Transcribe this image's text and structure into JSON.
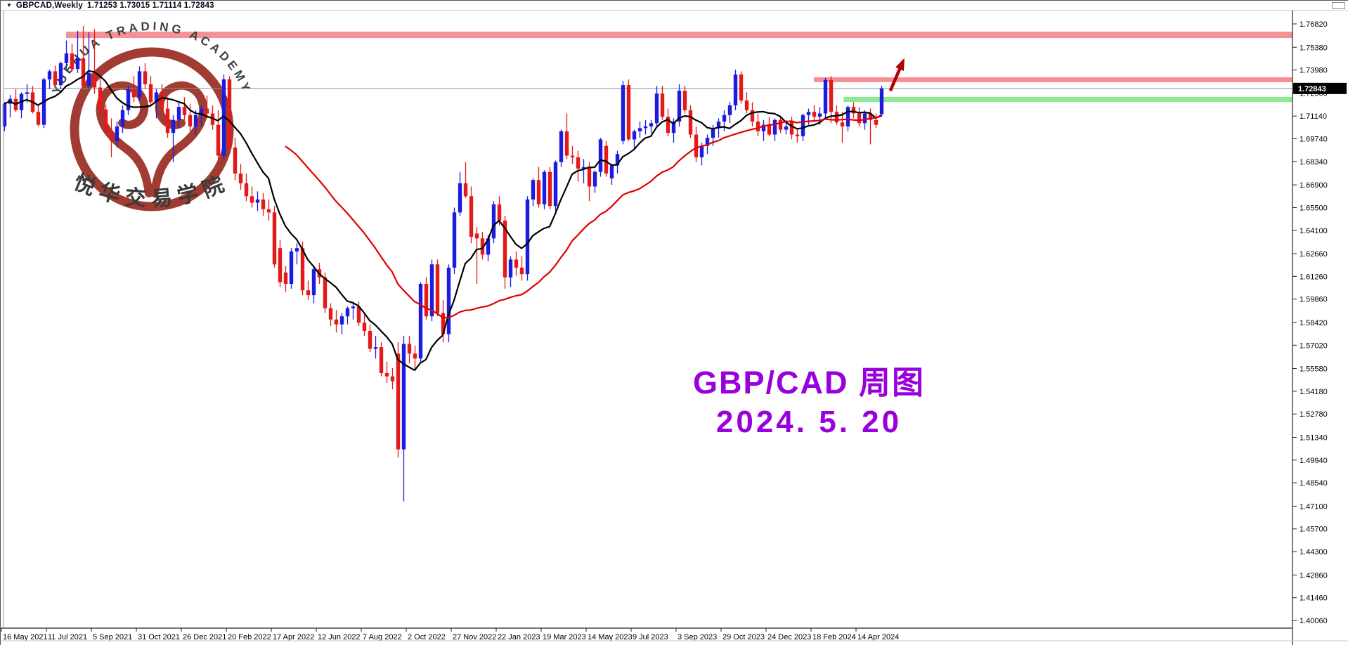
{
  "window": {
    "dropdown_icon": "▼",
    "symbol_title": "GBPCAD,Weekly",
    "title_ohlc": "1.71253 1.73015 1.71114 1.72843"
  },
  "watermark": {
    "arc_text": "YUEHUA TRADING ACADEMY",
    "cn_text": "悦华交易学院",
    "ring_color": "#A03C32",
    "text_color": "#3F3F3F"
  },
  "annotation": {
    "line1": "GBP/CAD 周图",
    "line2": "2024. 5. 20",
    "color": "#9900DD"
  },
  "price_label": {
    "value": "1.72843"
  },
  "chart_data": {
    "type": "candlestick",
    "symbol": "GBPCAD",
    "timeframe": "Weekly",
    "title": "GBPCAD,Weekly",
    "current_bar": {
      "open": 1.71253,
      "high": 1.73015,
      "low": 1.71114,
      "close": 1.72843
    },
    "ylim": [
      1.39,
      1.775
    ],
    "grid": false,
    "up_color": "#1C1CE0",
    "down_color": "#E41A1A",
    "current_line_color": "#8593A2",
    "y_ticks": [
      "1.76820",
      "1.75380",
      "1.73980",
      "1.72560",
      "1.71140",
      "1.69740",
      "1.68340",
      "1.66900",
      "1.65500",
      "1.64100",
      "1.62660",
      "1.61260",
      "1.59860",
      "1.58420",
      "1.57020",
      "1.55580",
      "1.54180",
      "1.52780",
      "1.51340",
      "1.49940",
      "1.48540",
      "1.47100",
      "1.45700",
      "1.44300",
      "1.42860",
      "1.41460",
      "1.40060"
    ],
    "x_tick_labels": [
      "16 May 2021",
      "11 Jul 2021",
      "5 Sep 2021",
      "31 Oct 2021",
      "26 Dec 2021",
      "20 Feb 2022",
      "17 Apr 2022",
      "12 Jun 2022",
      "7 Aug 2022",
      "2 Oct 2022",
      "27 Nov 2022",
      "22 Jan 2023",
      "19 Mar 2023",
      "14 May 2023",
      "9 Jul 2023",
      "3 Sep 2023",
      "29 Oct 2023",
      "24 Dec 2023",
      "18 Feb 2024",
      "14 Apr 2024"
    ],
    "bands": [
      {
        "name": "resistance-zone-upper",
        "color": "#F59095",
        "price_from": 1.7595,
        "price_to": 1.7634,
        "start_index": 11
      },
      {
        "name": "resistance-zone-lower",
        "color": "#F59095",
        "price_from": 1.7323,
        "price_to": 1.7353,
        "start_index": 144
      },
      {
        "name": "support-zone",
        "color": "#8FE895",
        "price_from": 1.7201,
        "price_to": 1.7232,
        "start_index": 149.3
      }
    ],
    "ma_fast": {
      "period": 9,
      "color": "#000000",
      "width": 2.2
    },
    "ma_slow": {
      "period": 31,
      "color": "#E00000",
      "width": 2.2,
      "start_index": 50
    },
    "arrow": {
      "color": "#B00000",
      "tail_index": 157.6,
      "tail_price": 1.727,
      "tip_index": 159.9,
      "tip_price": 1.7455
    },
    "candles": [
      [
        1.705,
        1.72,
        1.702,
        1.719
      ],
      [
        1.719,
        1.7245,
        1.7105,
        1.722
      ],
      [
        1.722,
        1.728,
        1.714,
        1.715
      ],
      [
        1.715,
        1.726,
        1.71,
        1.725
      ],
      [
        1.725,
        1.731,
        1.7195,
        1.726
      ],
      [
        1.726,
        1.73,
        1.713,
        1.714
      ],
      [
        1.714,
        1.7185,
        1.705,
        1.706
      ],
      [
        1.706,
        1.735,
        1.704,
        1.734
      ],
      [
        1.734,
        1.74,
        1.728,
        1.739
      ],
      [
        1.739,
        1.7425,
        1.7295,
        1.7305
      ],
      [
        1.7305,
        1.745,
        1.728,
        1.744
      ],
      [
        1.744,
        1.758,
        1.74,
        1.75
      ],
      [
        1.75,
        1.756,
        1.739,
        1.7405
      ],
      [
        1.7405,
        1.764,
        1.738,
        1.747
      ],
      [
        1.747,
        1.767,
        1.729,
        1.73
      ],
      [
        1.73,
        1.763,
        1.728,
        1.738
      ],
      [
        1.738,
        1.765,
        1.725,
        1.729
      ],
      [
        1.729,
        1.735,
        1.713,
        1.7155
      ],
      [
        1.7155,
        1.7185,
        1.7,
        1.702
      ],
      [
        1.702,
        1.71,
        1.686,
        1.696
      ],
      [
        1.696,
        1.708,
        1.692,
        1.705
      ],
      [
        1.705,
        1.718,
        1.701,
        1.715
      ],
      [
        1.715,
        1.73,
        1.712,
        1.728
      ],
      [
        1.728,
        1.736,
        1.72,
        1.723
      ],
      [
        1.723,
        1.742,
        1.721,
        1.739
      ],
      [
        1.739,
        1.744,
        1.728,
        1.731
      ],
      [
        1.731,
        1.736,
        1.718,
        1.72
      ],
      [
        1.72,
        1.728,
        1.71,
        1.726
      ],
      [
        1.726,
        1.731,
        1.714,
        1.716
      ],
      [
        1.716,
        1.723,
        1.698,
        1.701
      ],
      [
        1.701,
        1.712,
        1.683,
        1.709
      ],
      [
        1.709,
        1.72,
        1.704,
        1.717
      ],
      [
        1.717,
        1.723,
        1.709,
        1.712
      ],
      [
        1.712,
        1.719,
        1.702,
        1.705
      ],
      [
        1.705,
        1.715,
        1.7,
        1.712
      ],
      [
        1.712,
        1.718,
        1.705,
        1.716
      ],
      [
        1.716,
        1.724,
        1.71,
        1.713
      ],
      [
        1.713,
        1.718,
        1.703,
        1.706
      ],
      [
        1.706,
        1.715,
        1.683,
        1.687
      ],
      [
        1.687,
        1.737,
        1.685,
        1.734
      ],
      [
        1.734,
        1.736,
        1.689,
        1.692
      ],
      [
        1.692,
        1.698,
        1.672,
        1.676
      ],
      [
        1.676,
        1.682,
        1.666,
        1.67
      ],
      [
        1.67,
        1.676,
        1.659,
        1.662
      ],
      [
        1.662,
        1.668,
        1.655,
        1.658
      ],
      [
        1.658,
        1.665,
        1.653,
        1.66
      ],
      [
        1.66,
        1.664,
        1.65,
        1.654
      ],
      [
        1.654,
        1.66,
        1.647,
        1.652
      ],
      [
        1.652,
        1.656,
        1.618,
        1.62
      ],
      [
        1.63,
        1.635,
        1.606,
        1.609
      ],
      [
        1.615,
        1.619,
        1.603,
        1.608
      ],
      [
        1.608,
        1.63,
        1.605,
        1.628
      ],
      [
        1.628,
        1.633,
        1.62,
        1.63
      ],
      [
        1.63,
        1.634,
        1.601,
        1.604
      ],
      [
        1.604,
        1.61,
        1.598,
        1.601
      ],
      [
        1.601,
        1.619,
        1.596,
        1.617
      ],
      [
        1.617,
        1.621,
        1.608,
        1.612
      ],
      [
        1.612,
        1.615,
        1.59,
        1.593
      ],
      [
        1.593,
        1.596,
        1.582,
        1.586
      ],
      [
        1.586,
        1.592,
        1.578,
        1.583
      ],
      [
        1.583,
        1.59,
        1.577,
        1.588
      ],
      [
        1.588,
        1.594,
        1.583,
        1.593
      ],
      [
        1.593,
        1.597,
        1.586,
        1.594
      ],
      [
        1.594,
        1.597,
        1.582,
        1.584
      ],
      [
        1.584,
        1.589,
        1.576,
        1.579
      ],
      [
        1.579,
        1.583,
        1.566,
        1.568
      ],
      [
        1.568,
        1.576,
        1.562,
        1.569
      ],
      [
        1.569,
        1.572,
        1.551,
        1.553
      ],
      [
        1.553,
        1.56,
        1.547,
        1.551
      ],
      [
        1.551,
        1.556,
        1.543,
        1.548
      ],
      [
        1.565,
        1.572,
        1.501,
        1.506
      ],
      [
        1.506,
        1.576,
        1.474,
        1.571
      ],
      [
        1.571,
        1.576,
        1.559,
        1.565
      ],
      [
        1.565,
        1.57,
        1.555,
        1.562
      ],
      [
        1.562,
        1.609,
        1.56,
        1.608
      ],
      [
        1.608,
        1.612,
        1.586,
        1.588
      ],
      [
        1.588,
        1.623,
        1.585,
        1.62
      ],
      [
        1.62,
        1.623,
        1.588,
        1.59
      ],
      [
        1.59,
        1.598,
        1.572,
        1.577
      ],
      [
        1.577,
        1.62,
        1.572,
        1.618
      ],
      [
        1.618,
        1.655,
        1.614,
        1.652
      ],
      [
        1.652,
        1.677,
        1.65,
        1.67
      ],
      [
        1.67,
        1.683,
        1.661,
        1.662
      ],
      [
        1.662,
        1.668,
        1.633,
        1.637
      ],
      [
        1.639,
        1.643,
        1.608,
        1.636
      ],
      [
        1.636,
        1.64,
        1.623,
        1.626
      ],
      [
        1.626,
        1.638,
        1.622,
        1.636
      ],
      [
        1.636,
        1.659,
        1.633,
        1.657
      ],
      [
        1.657,
        1.662,
        1.644,
        1.647
      ],
      [
        1.647,
        1.65,
        1.605,
        1.612
      ],
      [
        1.612,
        1.625,
        1.606,
        1.623
      ],
      [
        1.623,
        1.628,
        1.613,
        1.618
      ],
      [
        1.618,
        1.625,
        1.61,
        1.614
      ],
      [
        1.614,
        1.662,
        1.61,
        1.66
      ],
      [
        1.66,
        1.673,
        1.656,
        1.672
      ],
      [
        1.672,
        1.68,
        1.655,
        1.657
      ],
      [
        1.657,
        1.678,
        1.654,
        1.677
      ],
      [
        1.677,
        1.68,
        1.654,
        1.656
      ],
      [
        1.656,
        1.684,
        1.653,
        1.683
      ],
      [
        1.683,
        1.703,
        1.68,
        1.702
      ],
      [
        1.702,
        1.713,
        1.685,
        1.687
      ],
      [
        1.687,
        1.693,
        1.682,
        1.686
      ],
      [
        1.686,
        1.69,
        1.671,
        1.679
      ],
      [
        1.679,
        1.685,
        1.67,
        1.68
      ],
      [
        1.68,
        1.683,
        1.659,
        1.668
      ],
      [
        1.668,
        1.678,
        1.664,
        1.677
      ],
      [
        1.677,
        1.698,
        1.674,
        1.697
      ],
      [
        1.693,
        1.696,
        1.674,
        1.676
      ],
      [
        1.673,
        1.682,
        1.669,
        1.681
      ],
      [
        1.681,
        1.69,
        1.676,
        1.688
      ],
      [
        1.696,
        1.733,
        1.694,
        1.7305
      ],
      [
        1.7305,
        1.734,
        1.696,
        1.697
      ],
      [
        1.697,
        1.703,
        1.691,
        1.702
      ],
      [
        1.702,
        1.708,
        1.698,
        1.704
      ],
      [
        1.704,
        1.709,
        1.7,
        1.705
      ],
      [
        1.705,
        1.709,
        1.701,
        1.707
      ],
      [
        1.707,
        1.73,
        1.705,
        1.7253
      ],
      [
        1.7253,
        1.73,
        1.709,
        1.711
      ],
      [
        1.711,
        1.716,
        1.699,
        1.701
      ],
      [
        1.701,
        1.71,
        1.695,
        1.708
      ],
      [
        1.708,
        1.731,
        1.705,
        1.727
      ],
      [
        1.727,
        1.73,
        1.713,
        1.715
      ],
      [
        1.715,
        1.718,
        1.698,
        1.7
      ],
      [
        1.7,
        1.705,
        1.683,
        1.686
      ],
      [
        1.686,
        1.695,
        1.681,
        1.693
      ],
      [
        1.693,
        1.7,
        1.688,
        1.698
      ],
      [
        1.698,
        1.706,
        1.693,
        1.704
      ],
      [
        1.704,
        1.71,
        1.698,
        1.708
      ],
      [
        1.708,
        1.715,
        1.702,
        1.712
      ],
      [
        1.712,
        1.72,
        1.707,
        1.718
      ],
      [
        1.718,
        1.74,
        1.715,
        1.737
      ],
      [
        1.737,
        1.739,
        1.719,
        1.721
      ],
      [
        1.721,
        1.726,
        1.713,
        1.715
      ],
      [
        1.715,
        1.72,
        1.705,
        1.708
      ],
      [
        1.708,
        1.713,
        1.699,
        1.702
      ],
      [
        1.702,
        1.709,
        1.696,
        1.706
      ],
      [
        1.706,
        1.711,
        1.699,
        1.7
      ],
      [
        1.7,
        1.71,
        1.696,
        1.709
      ],
      [
        1.709,
        1.711,
        1.701,
        1.703
      ],
      [
        1.703,
        1.709,
        1.7,
        1.705
      ],
      [
        1.708,
        1.711,
        1.697,
        1.7
      ],
      [
        1.7,
        1.704,
        1.695,
        1.699
      ],
      [
        1.699,
        1.713,
        1.696,
        1.712
      ],
      [
        1.712,
        1.716,
        1.706,
        1.714
      ],
      [
        1.714,
        1.718,
        1.708,
        1.711
      ],
      [
        1.711,
        1.717,
        1.706,
        1.713
      ],
      [
        1.713,
        1.735,
        1.71,
        1.7336
      ],
      [
        1.7336,
        1.736,
        1.707,
        1.714
      ],
      [
        1.714,
        1.718,
        1.706,
        1.7075
      ],
      [
        1.7075,
        1.714,
        1.695,
        1.705
      ],
      [
        1.705,
        1.718,
        1.702,
        1.717
      ],
      [
        1.717,
        1.72,
        1.71,
        1.713
      ],
      [
        1.713,
        1.717,
        1.705,
        1.707
      ],
      [
        1.707,
        1.715,
        1.703,
        1.713
      ],
      [
        1.713,
        1.716,
        1.694,
        1.709
      ],
      [
        1.709,
        1.713,
        1.704,
        1.706
      ],
      [
        1.71253,
        1.73015,
        1.71114,
        1.72843
      ]
    ]
  }
}
